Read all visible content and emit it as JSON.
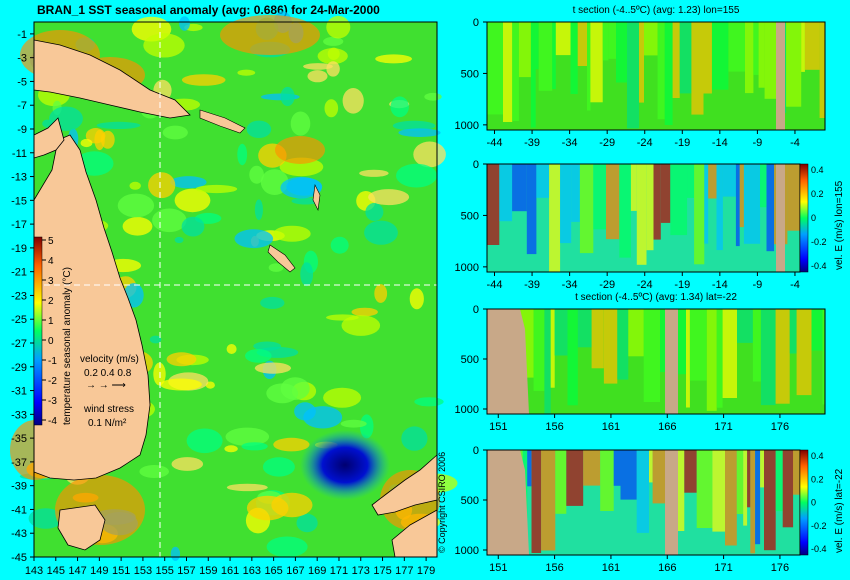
{
  "map": {
    "title": "BRAN_1 SST seasonal anomaly (avg: 0.686) for 24-Mar-2000",
    "lat_ticks": [
      "-1",
      "-3",
      "-5",
      "-7",
      "-9",
      "-11",
      "-13",
      "-15",
      "-17",
      "-19",
      "-21",
      "-23",
      "-25",
      "-27",
      "-29",
      "-31",
      "-33",
      "-35",
      "-37",
      "-39",
      "-41",
      "-43",
      "-45"
    ],
    "lon_ticks": [
      "143",
      "145",
      "147",
      "149",
      "151",
      "153",
      "155",
      "157",
      "159",
      "161",
      "163",
      "165",
      "167",
      "169",
      "171",
      "173",
      "175",
      "177",
      "179"
    ],
    "colorbar_ticks": [
      "5",
      "4",
      "3",
      "2",
      "1",
      "0",
      "-1",
      "-2",
      "-3",
      "-4"
    ],
    "colorbar_label": "temperature seasonal anomaly (°C)",
    "velocity_label": "velocity (m/s)",
    "velocity_scale": "0.2 0.4 0.8",
    "wind_label": "wind stress",
    "wind_scale": "0.1 N/m²",
    "copyright": "© Copyright CSIRO 2006"
  },
  "panels": [
    {
      "title": "t section (-4..5ºC) (avg: 1.23) lon=155",
      "x_ticks": [
        "-44",
        "-39",
        "-34",
        "-29",
        "-24",
        "-19",
        "-14",
        "-9",
        "-4"
      ],
      "y_ticks": [
        "0",
        "500",
        "1000"
      ],
      "side_label": ""
    },
    {
      "title": "",
      "x_ticks": [
        "-44",
        "-39",
        "-34",
        "-29",
        "-24",
        "-19",
        "-14",
        "-9",
        "-4"
      ],
      "y_ticks": [
        "0",
        "500",
        "1000"
      ],
      "side_label": "vel. E (m/s) lon=155",
      "cb_ticks": [
        "0.4",
        "0.2",
        "0",
        "-0.2",
        "-0.4"
      ]
    },
    {
      "title": "t section (-4..5ºC) (avg: 1.34) lat=-22",
      "x_ticks": [
        "151",
        "156",
        "161",
        "166",
        "171",
        "176"
      ],
      "y_ticks": [
        "0",
        "500",
        "1000"
      ],
      "side_label": ""
    },
    {
      "title": "",
      "x_ticks": [
        "151",
        "156",
        "161",
        "166",
        "171",
        "176"
      ],
      "y_ticks": [
        "0",
        "500",
        "1000"
      ],
      "side_label": "vel. E (m/s) lat=-22",
      "cb_ticks": [
        "0.4",
        "0.2",
        "0",
        "-0.2",
        "-0.4"
      ]
    }
  ],
  "chart_data": [
    {
      "type": "heatmap",
      "title": "BRAN_1 SST seasonal anomaly (avg: 0.686) for 24-Mar-2000",
      "xlabel": "",
      "ylabel": "",
      "xlim": [
        143,
        180
      ],
      "ylim": [
        -45,
        0
      ],
      "colorbar_range": [
        -4,
        5
      ],
      "colorbar_label": "temperature seasonal anomaly (°C)"
    },
    {
      "type": "heatmap",
      "title": "t section (-4..5ºC) (avg: 1.23) lon=155",
      "xlim": [
        -45,
        0
      ],
      "ylim": [
        1000,
        0
      ]
    },
    {
      "type": "heatmap",
      "title": "",
      "xlim": [
        -45,
        0
      ],
      "ylim": [
        1000,
        0
      ],
      "colorbar_range": [
        -0.4,
        0.4
      ],
      "colorbar_label": "vel. E (m/s) lon=155"
    },
    {
      "type": "heatmap",
      "title": "t section (-4..5ºC) (avg: 1.34) lat=-22",
      "xlim": [
        150,
        180
      ],
      "ylim": [
        1000,
        0
      ]
    },
    {
      "type": "heatmap",
      "title": "",
      "xlim": [
        150,
        180
      ],
      "ylim": [
        1000,
        0
      ],
      "colorbar_range": [
        -0.4,
        0.4
      ],
      "colorbar_label": "vel. E (m/s) lat=-22"
    }
  ]
}
